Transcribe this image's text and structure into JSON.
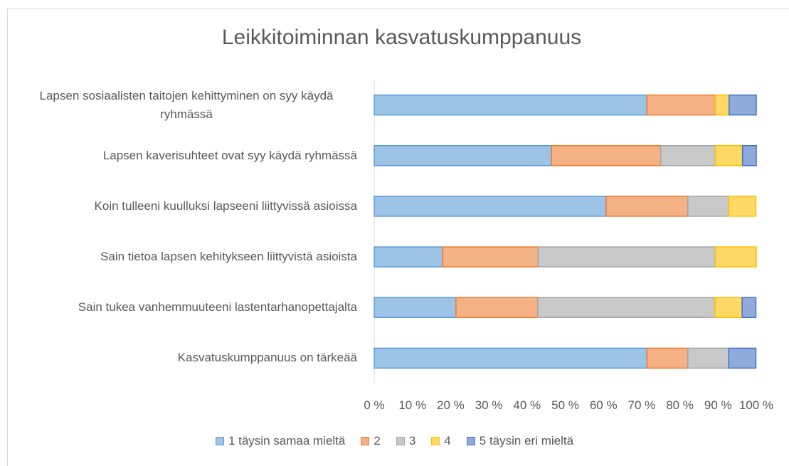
{
  "chart_data": {
    "type": "stacked_bar_horizontal",
    "title": "Leikkitoiminnan kasvatuskumppanuus",
    "categories": [
      "Lapsen sosiaalisten taitojen kehittyminen on syy käydä ryhmässä",
      "Lapsen kaverisuhteet ovat syy käydä ryhmässä",
      "Koin tulleeni kuulluksi lapseeni liittyvissä asioissa",
      "Sain tietoa lapsen kehitykseen liittyvistä asioista",
      "Sain tukea vanhemmuuteeni lastentarhanopettajalta",
      "Kasvatuskumppanuus on tärkeää"
    ],
    "series": [
      {
        "name": "1 täysin samaa mieltä",
        "color": "#9dc3e6",
        "stroke": "#5b9bd5",
        "values": [
          71.4,
          46.4,
          60.7,
          17.9,
          21.4,
          71.4
        ]
      },
      {
        "name": "2",
        "color": "#f4b183",
        "stroke": "#ed7d31",
        "values": [
          17.9,
          28.6,
          21.4,
          25.0,
          21.4,
          10.7
        ]
      },
      {
        "name": "3",
        "color": "#c9c9c9",
        "stroke": "#a5a5a5",
        "values": [
          0,
          14.3,
          10.7,
          46.4,
          46.4,
          10.7
        ]
      },
      {
        "name": "4",
        "color": "#ffd966",
        "stroke": "#ffc000",
        "values": [
          3.6,
          7.1,
          7.1,
          10.7,
          7.1,
          0
        ]
      },
      {
        "name": "5 täysin eri mieltä",
        "color": "#8faadc",
        "stroke": "#4472c4",
        "values": [
          7.1,
          3.6,
          0,
          0,
          3.6,
          7.1
        ]
      }
    ],
    "xlim": [
      0,
      100
    ],
    "xticks": [
      {
        "value": 0,
        "label": "0 %"
      },
      {
        "value": 10,
        "label": "10 %"
      },
      {
        "value": 20,
        "label": "20 %"
      },
      {
        "value": 30,
        "label": "30 %"
      },
      {
        "value": 40,
        "label": "40 %"
      },
      {
        "value": 50,
        "label": "50 %"
      },
      {
        "value": 60,
        "label": "60 %"
      },
      {
        "value": 70,
        "label": "70 %"
      },
      {
        "value": 80,
        "label": "80 %"
      },
      {
        "value": 90,
        "label": "90 %"
      },
      {
        "value": 100,
        "label": "100 %"
      }
    ],
    "legend": "bottom"
  }
}
